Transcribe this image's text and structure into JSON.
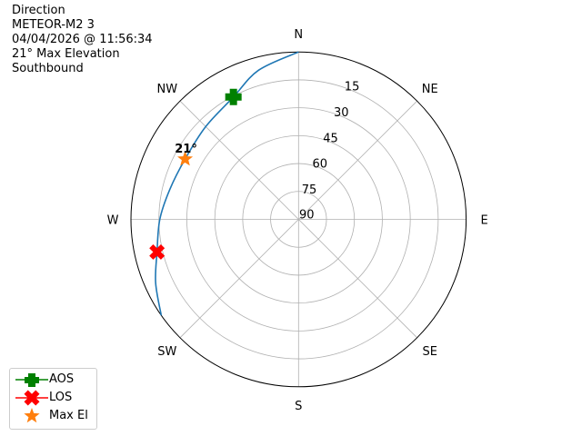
{
  "title_lines": [
    "Direction",
    "METEOR-M2 3",
    "04/04/2026 @ 11:56:34",
    "21° Max Elevation",
    "Southbound"
  ],
  "chart_data": {
    "type": "polar",
    "direction_labels": [
      "N",
      "NE",
      "E",
      "SE",
      "S",
      "SW",
      "W",
      "NW"
    ],
    "direction_azimuths": [
      0,
      45,
      90,
      135,
      180,
      225,
      270,
      315
    ],
    "radial_axis": {
      "ticks": [
        15,
        30,
        45,
        60,
        75,
        90
      ],
      "range": [
        0,
        90
      ],
      "note_inverted": true
    },
    "grid": true,
    "track": {
      "color": "#1f77b4",
      "points": [
        [
          0,
          0
        ],
        [
          345,
          7
        ],
        [
          332,
          15.5
        ],
        [
          315,
          19.5
        ],
        [
          298,
          21
        ],
        [
          283,
          19
        ],
        [
          270,
          15.5
        ],
        [
          257,
          12
        ],
        [
          246,
          6
        ],
        [
          235,
          0
        ]
      ]
    },
    "markers": [
      {
        "name": "AOS",
        "az": 332,
        "el": 15.5,
        "color": "#008000",
        "shape": "plus"
      },
      {
        "name": "LOS",
        "az": 257,
        "el": 12,
        "color": "#ff0000",
        "shape": "x"
      },
      {
        "name": "Max El",
        "az": 298,
        "el": 21,
        "color": "#ff7f0e",
        "shape": "star"
      }
    ],
    "max_el_label": "21°",
    "legend_position": "lower-left"
  }
}
